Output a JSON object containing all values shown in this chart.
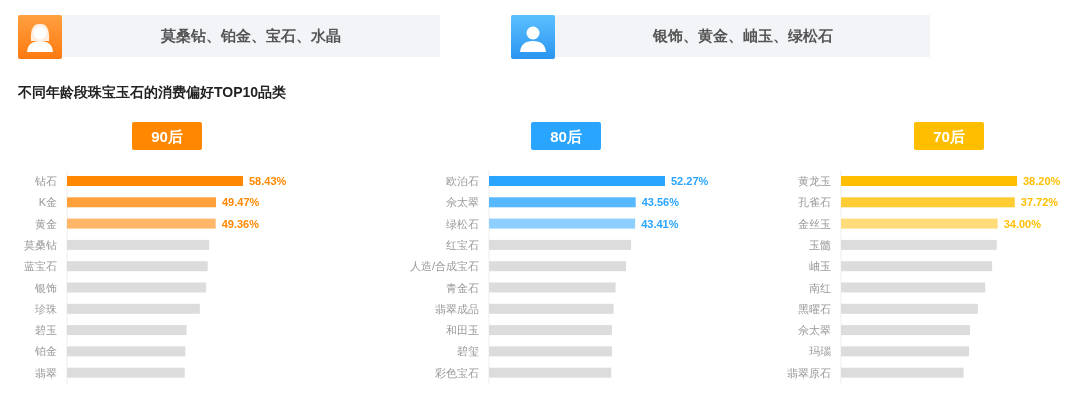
{
  "chart_data": [
    {
      "type": "other",
      "annotations": [
        "莫桑钻、铂金、宝石、水晶"
      ]
    },
    {
      "type": "other",
      "annotations": [
        "银饰、黄金、岫玉、绿松石"
      ]
    },
    {
      "type": "other",
      "title": "不同年龄段珠宝玉石的消费偏好TOP10品类"
    },
    {
      "type": "bar",
      "orientation": "horizontal",
      "title": "90后",
      "categories": [
        "钻石",
        "K金",
        "黄金",
        "莫桑钻",
        "蓝宝石",
        "银饰",
        "珍珠",
        "碧玉",
        "铂金",
        "翡翠"
      ],
      "values": [
        58.43,
        49.47,
        49.36,
        47.2,
        46.7,
        46.2,
        44.1,
        39.7,
        39.3,
        39.1
      ],
      "value_labels": [
        "58.43%",
        "49.47%",
        "49.36%",
        null,
        null,
        null,
        null,
        null,
        null,
        null
      ],
      "colors": [
        "#ff8800",
        "#ffa03a",
        "#ffb669",
        "#dcdcdc",
        "#dcdcdc",
        "#dcdcdc",
        "#dcdcdc",
        "#dcdcdc",
        "#dcdcdc",
        "#dcdcdc"
      ]
    },
    {
      "type": "bar",
      "orientation": "horizontal",
      "title": "80后",
      "categories": [
        "欧泊石",
        "佘太翠",
        "绿松石",
        "红宝石",
        "人造/合成宝石",
        "青金石",
        "翡翠成品",
        "和田玉",
        "碧玺",
        "彩色宝石"
      ],
      "values": [
        52.27,
        43.56,
        43.41,
        42.2,
        40.7,
        37.6,
        37.0,
        36.5,
        36.5,
        36.3
      ],
      "value_labels": [
        "52.27%",
        "43.56%",
        "43.41%",
        null,
        null,
        null,
        null,
        null,
        null,
        null
      ],
      "colors": [
        "#2aa5ff",
        "#58b8ff",
        "#8fcfff",
        "#dcdcdc",
        "#dcdcdc",
        "#dcdcdc",
        "#dcdcdc",
        "#dcdcdc",
        "#dcdcdc",
        "#dcdcdc"
      ]
    },
    {
      "type": "bar",
      "orientation": "horizontal",
      "title": "70后",
      "categories": [
        "黄龙玉",
        "孔雀石",
        "金丝玉",
        "玉髓",
        "岫玉",
        "南红",
        "黑曜石",
        "佘太翠",
        "玛瑙",
        "翡翠原石"
      ],
      "values": [
        38.2,
        37.72,
        34.0,
        33.8,
        32.8,
        31.3,
        29.7,
        28.0,
        27.8,
        26.6
      ],
      "value_labels": [
        "38.20%",
        "37.72%",
        "34.00%",
        null,
        null,
        null,
        null,
        null,
        null,
        null
      ],
      "colors": [
        "#ffbf00",
        "#ffcc33",
        "#ffdc7a",
        "#dcdcdc",
        "#dcdcdc",
        "#dcdcdc",
        "#dcdcdc",
        "#dcdcdc",
        "#dcdcdc",
        "#dcdcdc"
      ]
    }
  ]
}
